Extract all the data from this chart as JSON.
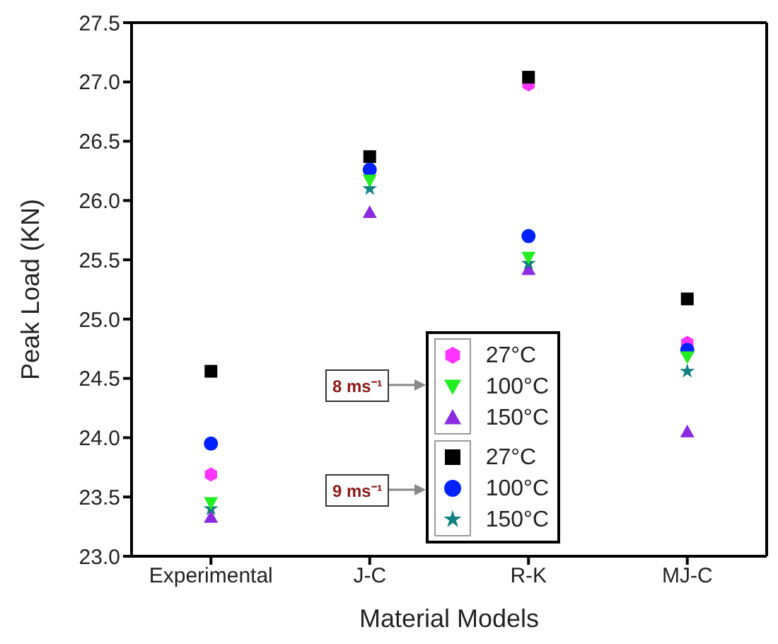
{
  "chart_data": {
    "type": "scatter",
    "xlabel": "Material Models",
    "ylabel": "Peak Load (KN)",
    "categories": [
      "Experimental",
      "J-C",
      "R-K",
      "MJ-C"
    ],
    "series": [
      {
        "name": "27°C",
        "color": "#ff33ff",
        "values": [
          23.69,
          null,
          26.98,
          24.8
        ]
      },
      {
        "name": "100°C",
        "color": "#22ee22",
        "values": [
          23.45,
          26.17,
          25.52,
          24.68
        ]
      },
      {
        "name": "150°C",
        "color": "#8a2be2",
        "values": [
          23.33,
          25.9,
          25.42,
          24.05
        ]
      },
      {
        "name": "27°C",
        "color": "#000000",
        "values": [
          24.56,
          26.37,
          27.04,
          25.17
        ]
      },
      {
        "name": "100°C",
        "color": "#0022ff",
        "values": [
          23.95,
          26.26,
          25.7,
          24.74
        ]
      },
      {
        "name": "150°C",
        "color": "#108080",
        "values": [
          23.4,
          26.1,
          25.47,
          24.56
        ]
      }
    ],
    "annotations": [
      "8 ms⁻¹",
      "9 ms⁻¹"
    ],
    "ylim": [
      23.0,
      27.5
    ],
    "yticks": [
      {
        "value": 23.0,
        "label": "23.0"
      },
      {
        "value": 23.5,
        "label": "23.5"
      },
      {
        "value": 24.0,
        "label": "24.0"
      },
      {
        "value": 24.5,
        "label": "24.5"
      },
      {
        "value": 25.0,
        "label": "25.0"
      },
      {
        "value": 25.5,
        "label": "25.5"
      },
      {
        "value": 26.0,
        "label": "26.0"
      },
      {
        "value": 26.5,
        "label": "26.5"
      },
      {
        "value": 27.0,
        "label": "27.0"
      },
      {
        "value": 27.5,
        "label": "27.5"
      }
    ],
    "legend": "bottom",
    "grid": false
  }
}
